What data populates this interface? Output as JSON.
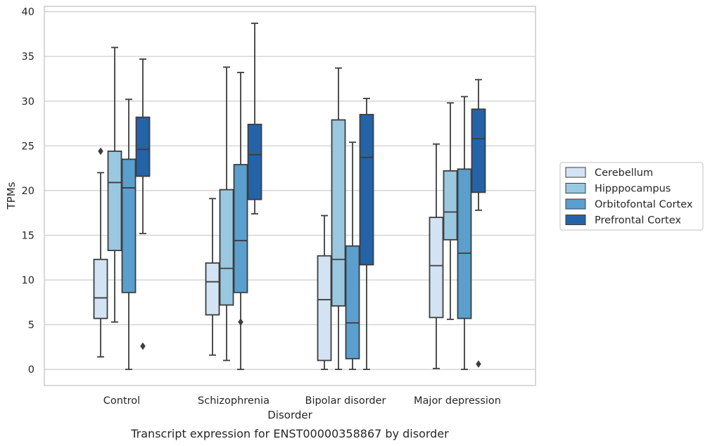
{
  "chart_data": {
    "type": "box",
    "caption": "Transcript expression for ENST00000358867 by disorder",
    "xlabel": "Disorder",
    "ylabel": "TPMs",
    "ylim": [
      -1.8,
      40.6
    ],
    "yticks": [
      0,
      5,
      10,
      15,
      20,
      25,
      30,
      35,
      40
    ],
    "grid": "horizontal",
    "legend_position": "right",
    "categories": [
      "Control",
      "Schizophrenia",
      "Bipolar disorder",
      "Major depression"
    ],
    "series": [
      {
        "name": "Cerebellum",
        "color": "#d3e3f3",
        "boxes": [
          {
            "whisker_low": 1.4,
            "q1": 5.7,
            "median": 8.0,
            "q3": 12.3,
            "whisker_high": 22.0,
            "outliers": [
              24.4
            ]
          },
          {
            "whisker_low": 1.6,
            "q1": 6.1,
            "median": 9.8,
            "q3": 11.9,
            "whisker_high": 19.1,
            "outliers": []
          },
          {
            "whisker_low": 0.0,
            "q1": 1.0,
            "median": 7.8,
            "q3": 12.7,
            "whisker_high": 17.2,
            "outliers": []
          },
          {
            "whisker_low": 0.1,
            "q1": 5.8,
            "median": 11.6,
            "q3": 17.0,
            "whisker_high": 25.2,
            "outliers": []
          }
        ]
      },
      {
        "name": "Hipppocampus",
        "color": "#9ac8e0",
        "boxes": [
          {
            "whisker_low": 5.3,
            "q1": 13.3,
            "median": 20.9,
            "q3": 24.4,
            "whisker_high": 36.0,
            "outliers": []
          },
          {
            "whisker_low": 1.0,
            "q1": 7.2,
            "median": 11.3,
            "q3": 20.1,
            "whisker_high": 33.8,
            "outliers": []
          },
          {
            "whisker_low": 0.0,
            "q1": 7.1,
            "median": 12.3,
            "q3": 27.9,
            "whisker_high": 33.7,
            "outliers": []
          },
          {
            "whisker_low": 5.6,
            "q1": 14.5,
            "median": 17.6,
            "q3": 22.2,
            "whisker_high": 29.8,
            "outliers": []
          }
        ]
      },
      {
        "name": "Orbitofontal Cortex",
        "color": "#5a9fcd",
        "boxes": [
          {
            "whisker_low": 0.0,
            "q1": 8.6,
            "median": 20.3,
            "q3": 23.5,
            "whisker_high": 30.2,
            "outliers": []
          },
          {
            "whisker_low": 0.0,
            "q1": 8.6,
            "median": 14.4,
            "q3": 22.9,
            "whisker_high": 33.2,
            "outliers": [
              5.3
            ]
          },
          {
            "whisker_low": 0.0,
            "q1": 1.2,
            "median": 5.2,
            "q3": 13.8,
            "whisker_high": 25.4,
            "outliers": []
          },
          {
            "whisker_low": 0.0,
            "q1": 5.7,
            "median": 13.0,
            "q3": 22.4,
            "whisker_high": 30.5,
            "outliers": []
          }
        ]
      },
      {
        "name": "Prefrontal Cortex",
        "color": "#2563a8",
        "boxes": [
          {
            "whisker_low": 15.2,
            "q1": 21.6,
            "median": 24.6,
            "q3": 28.2,
            "whisker_high": 34.7,
            "outliers": [
              2.6
            ]
          },
          {
            "whisker_low": 17.4,
            "q1": 19.0,
            "median": 24.0,
            "q3": 27.4,
            "whisker_high": 38.7,
            "outliers": []
          },
          {
            "whisker_low": 0.0,
            "q1": 11.7,
            "median": 23.7,
            "q3": 28.5,
            "whisker_high": 30.3,
            "outliers": []
          },
          {
            "whisker_low": 17.8,
            "q1": 19.8,
            "median": 25.8,
            "q3": 29.1,
            "whisker_high": 32.4,
            "outliers": [
              0.6
            ]
          }
        ]
      }
    ]
  }
}
